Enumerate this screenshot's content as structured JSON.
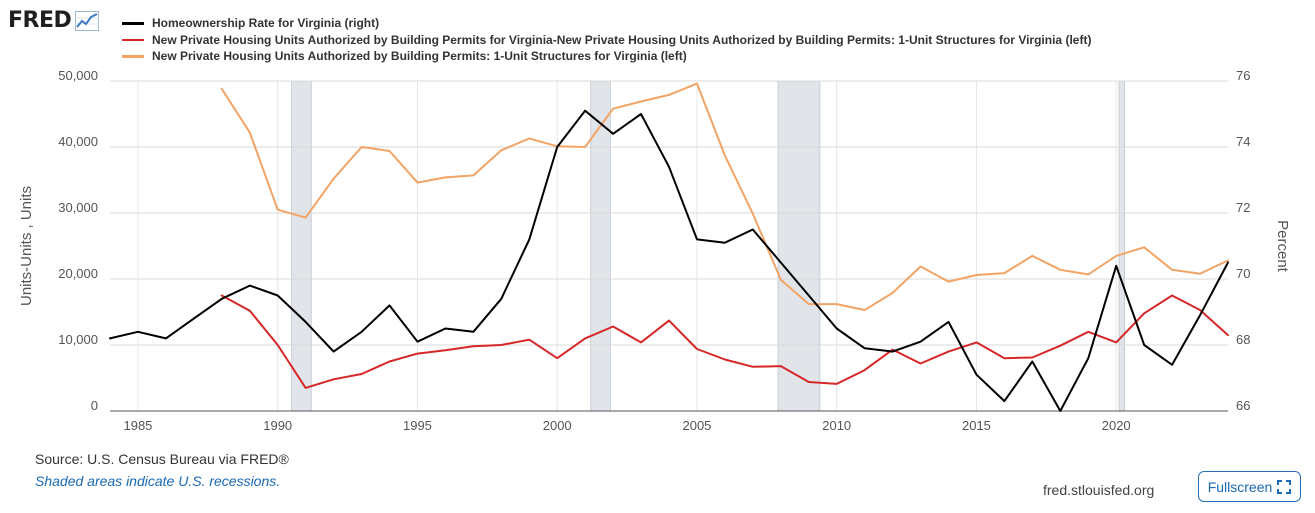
{
  "brand": {
    "name": "FRED"
  },
  "chart_data": {
    "type": "line",
    "legend": [
      {
        "label": "Homeownership Rate for Virginia (right)",
        "color": "#000000",
        "series": "homeownership"
      },
      {
        "label": "New Private Housing Units Authorized by Building Permits for Virginia-New Private Housing Units Authorized by Building Permits: 1-Unit Structures for Virginia (left)",
        "color": "#d62728",
        "series": "difference"
      },
      {
        "label": "New Private Housing Units Authorized by Building Permits: 1-Unit Structures for Virginia (left)",
        "color": "#f2a466",
        "series": "one_unit"
      }
    ],
    "left_axis": {
      "label": "Units-Units , Units",
      "min": 0,
      "max": 50000,
      "ticks": [
        0,
        10000,
        20000,
        30000,
        40000,
        50000
      ],
      "tick_labels": [
        "0",
        "10,000",
        "20,000",
        "30,000",
        "40,000",
        "50,000"
      ]
    },
    "right_axis": {
      "label": "Percent",
      "min": 66,
      "max": 76,
      "ticks": [
        66,
        68,
        70,
        72,
        74,
        76
      ],
      "tick_labels": [
        "66",
        "68",
        "70",
        "72",
        "74",
        "76"
      ]
    },
    "x_axis": {
      "min": 1984,
      "max": 2024,
      "ticks": [
        1985,
        1990,
        1995,
        2000,
        2005,
        2010,
        2015,
        2020
      ],
      "tick_labels": [
        "1985",
        "1990",
        "1995",
        "2000",
        "2005",
        "2010",
        "2015",
        "2020"
      ]
    },
    "recessions": [
      {
        "start": 1990.5,
        "end": 1991.2
      },
      {
        "start": 2001.2,
        "end": 2001.9
      },
      {
        "start": 2007.9,
        "end": 2009.4
      },
      {
        "start": 2020.1,
        "end": 2020.3
      }
    ],
    "series": {
      "homeownership": {
        "name": "Homeownership Rate for Virginia",
        "axis": "right",
        "color": "#000000",
        "x": [
          1984,
          1985,
          1986,
          1987,
          1988,
          1989,
          1990,
          1991,
          1992,
          1993,
          1994,
          1995,
          1996,
          1997,
          1998,
          1999,
          2000,
          2001,
          2002,
          2003,
          2004,
          2005,
          2006,
          2007,
          2008,
          2009,
          2010,
          2011,
          2012,
          2013,
          2014,
          2015,
          2016,
          2017,
          2018,
          2019,
          2020,
          2021,
          2022,
          2023,
          2024
        ],
        "y": [
          68.2,
          68.4,
          68.2,
          68.8,
          69.4,
          69.8,
          69.5,
          68.7,
          67.8,
          68.4,
          69.2,
          68.1,
          68.5,
          68.4,
          69.4,
          71.2,
          74.0,
          75.1,
          74.4,
          75.0,
          73.4,
          71.2,
          71.1,
          71.5,
          70.5,
          69.5,
          68.5,
          67.9,
          67.8,
          68.1,
          68.7,
          67.1,
          66.3,
          67.5,
          66.0,
          67.6,
          70.4,
          68.0,
          67.4,
          68.9,
          70.5
        ]
      },
      "difference": {
        "name": "New Private Housing Units Authorized by Building Permits for Virginia-New Private Housing Units Authorized by Building Permits: 1-Unit Structures for Virginia",
        "axis": "left",
        "color": "#d62728",
        "x": [
          1988,
          1989,
          1990,
          1991,
          1992,
          1993,
          1994,
          1995,
          1996,
          1997,
          1998,
          1999,
          2000,
          2001,
          2002,
          2003,
          2004,
          2005,
          2006,
          2007,
          2008,
          2009,
          2010,
          2011,
          2012,
          2013,
          2014,
          2015,
          2016,
          2017,
          2018,
          2019,
          2020,
          2021,
          2022,
          2023,
          2024
        ],
        "y": [
          17500,
          15200,
          10000,
          3500,
          4800,
          5600,
          7500,
          8700,
          9200,
          9800,
          10000,
          10800,
          8000,
          11000,
          12800,
          10400,
          13700,
          9400,
          7800,
          6700,
          6800,
          4400,
          4100,
          6200,
          9300,
          7200,
          9000,
          10400,
          8000,
          8100,
          9900,
          12000,
          10400,
          14800,
          17500,
          15300,
          11500
        ]
      },
      "one_unit": {
        "name": "New Private Housing Units Authorized by Building Permits: 1-Unit Structures for Virginia",
        "axis": "left",
        "color": "#f2a466",
        "x": [
          1988,
          1989,
          1990,
          1991,
          1992,
          1993,
          1994,
          1995,
          1996,
          1997,
          1998,
          1999,
          2000,
          2001,
          2002,
          2003,
          2004,
          2005,
          2006,
          2007,
          2008,
          2009,
          2010,
          2011,
          2012,
          2013,
          2014,
          2015,
          2016,
          2017,
          2018,
          2019,
          2020,
          2021,
          2022,
          2023,
          2024
        ],
        "y": [
          48800,
          42200,
          30500,
          29300,
          35200,
          40000,
          39400,
          34600,
          35400,
          35700,
          39500,
          41300,
          40100,
          40000,
          45800,
          46900,
          47900,
          49600,
          38700,
          29900,
          19900,
          16200,
          16200,
          15300,
          17900,
          21900,
          19600,
          20600,
          20900,
          23500,
          21400,
          20700,
          23500,
          24800,
          21400,
          20800,
          22800
        ]
      }
    }
  },
  "footer": {
    "source": "Source: U.S. Census Bureau via FRED®",
    "recession_note": "Shaded areas indicate U.S. recessions.",
    "site": "fred.stlouisfed.org",
    "fullscreen_label": "Fullscreen"
  }
}
